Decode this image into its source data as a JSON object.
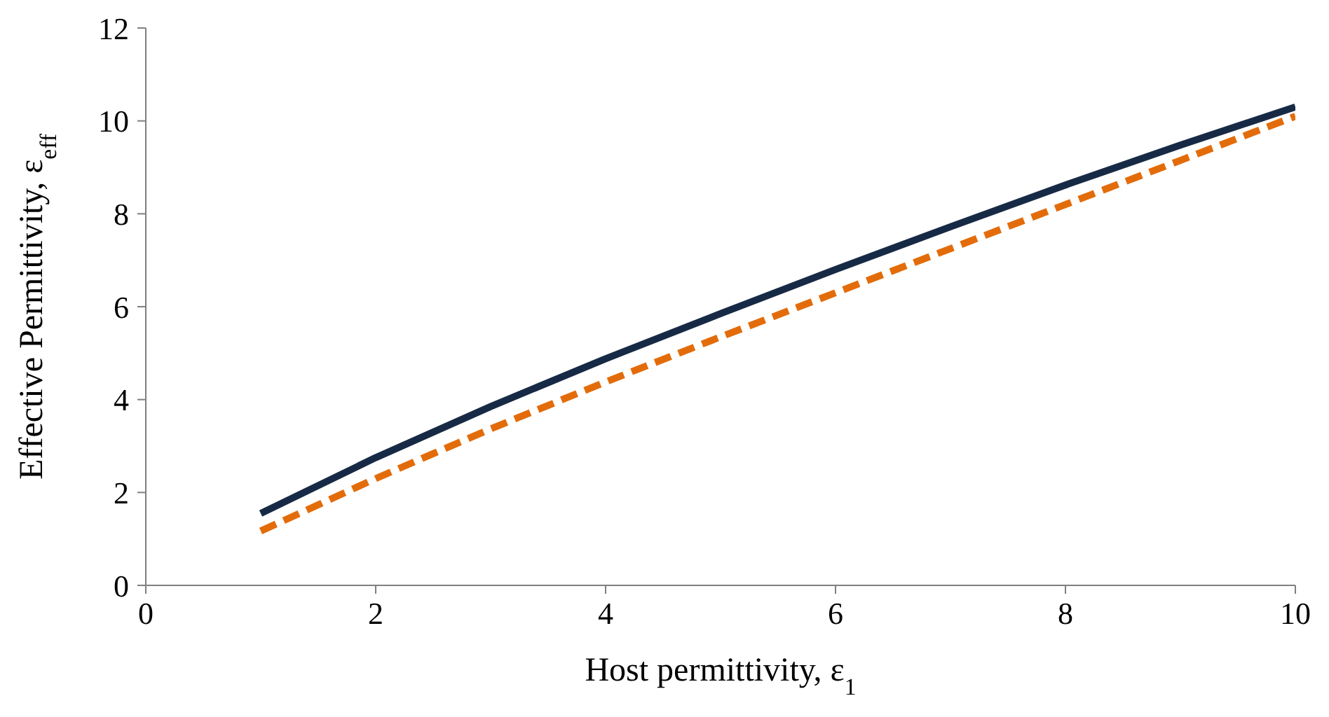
{
  "chart_data": {
    "type": "line",
    "xlabel": "Host permittivity,  ε$_{1}$",
    "ylabel": "Effective  Permittivity,  ε$_{eff}$",
    "xlim": [
      0,
      10
    ],
    "xticks": [
      0,
      2,
      4,
      6,
      8,
      10
    ],
    "ylim": [
      0,
      12
    ],
    "yticks": [
      0,
      2,
      4,
      6,
      8,
      10,
      12
    ],
    "grid": false,
    "legend": false,
    "marker": "none",
    "series": [
      {
        "color": "#172a45",
        "line_style": "solid",
        "x": [
          1,
          2,
          3,
          4,
          5,
          6,
          7,
          8,
          9,
          10
        ],
        "values": [
          1.55,
          2.75,
          3.85,
          4.88,
          5.85,
          6.8,
          7.72,
          8.62,
          9.48,
          10.3
        ]
      },
      {
        "color": "#e36c0a",
        "line_style": "dashed",
        "x": [
          1,
          2,
          3,
          4,
          5,
          6,
          7,
          8,
          9,
          10
        ],
        "values": [
          1.17,
          2.3,
          3.37,
          4.38,
          5.35,
          6.3,
          7.25,
          8.2,
          9.15,
          10.1
        ]
      }
    ]
  }
}
